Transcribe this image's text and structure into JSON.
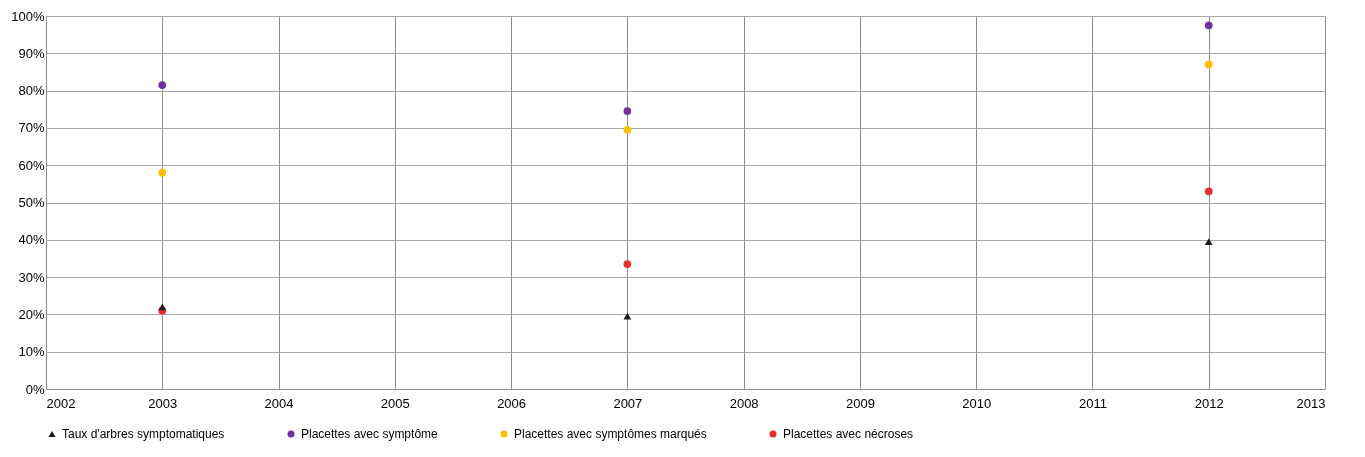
{
  "chart_data": {
    "type": "scatter",
    "x": [
      2003,
      2007,
      2012
    ],
    "series": [
      {
        "name": "Taux d'arbres symptomatiques",
        "color": "#1a1a1a",
        "marker": "triangle",
        "values": [
          22,
          19.5,
          39.5
        ]
      },
      {
        "name": "Placettes avec symptôme",
        "color": "#7030a0",
        "marker": "circle",
        "values": [
          81.5,
          74.5,
          97.5
        ]
      },
      {
        "name": "Placettes avec symptômes marqués",
        "color": "#ffc000",
        "marker": "circle",
        "values": [
          58,
          69.5,
          87
        ]
      },
      {
        "name": "Placettes avec nécroses",
        "color": "#e8302a",
        "marker": "circle",
        "values": [
          21,
          33.5,
          53
        ]
      }
    ],
    "xlim": [
      2002,
      2013
    ],
    "xticks": [
      2002,
      2003,
      2004,
      2005,
      2006,
      2007,
      2008,
      2009,
      2010,
      2011,
      2012,
      2013
    ],
    "ylim": [
      0,
      100
    ],
    "yticks": [
      {
        "value": 0,
        "label": "0%"
      },
      {
        "value": 10,
        "label": "10%"
      },
      {
        "value": 20,
        "label": "20%"
      },
      {
        "value": 30,
        "label": "30%"
      },
      {
        "value": 40,
        "label": "40%"
      },
      {
        "value": 50,
        "label": "50%"
      },
      {
        "value": 60,
        "label": "60%"
      },
      {
        "value": 70,
        "label": "70%"
      },
      {
        "value": 80,
        "label": "80%"
      },
      {
        "value": 90,
        "label": "90%"
      },
      {
        "value": 100,
        "label": "100%"
      }
    ],
    "grid": true,
    "legend": "bottom"
  }
}
